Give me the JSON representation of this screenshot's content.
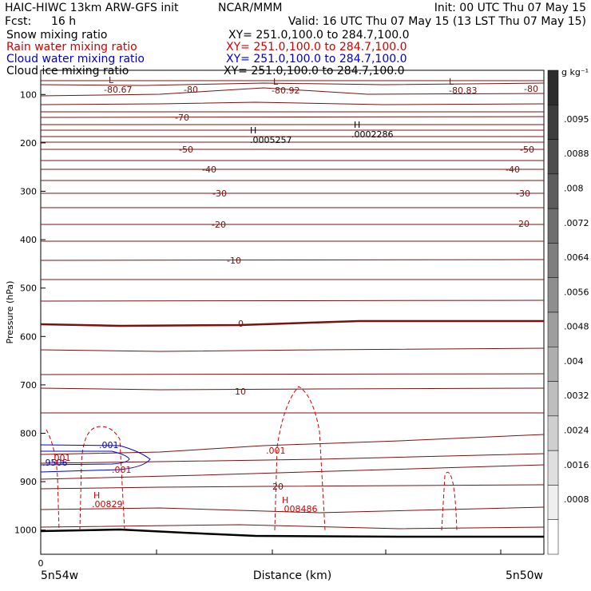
{
  "header": {
    "model": "HAIC-HIWC 13km ARW-GFS init",
    "org": "NCAR/MMM",
    "init": "Init: 00 UTC Thu 07 May 15",
    "fcst_label": "Fcst:",
    "fcst_value": "16 h",
    "valid": "Valid: 16 UTC Thu 07 May 15 (13 LST Thu 07 May 15)"
  },
  "fields": [
    {
      "name": "Snow mixing ratio",
      "xy": "XY= 251.0,100.0 to 284.7,100.0",
      "color": "#000000"
    },
    {
      "name": "Rain water mixing ratio",
      "xy": "XY= 251.0,100.0 to 284.7,100.0",
      "color": "#d40000"
    },
    {
      "name": "Cloud water mixing ratio",
      "xy": "XY= 251.0,100.0 to 284.7,100.0",
      "color": "#0000cc"
    },
    {
      "name": "Cloud ice mixing ratio",
      "xy": "XY= 251.0,100.0 to 284.7,100.0",
      "color": "#000000"
    }
  ],
  "chart_data": {
    "type": "contour-cross-section",
    "ylabel": "Pressure (hPa)",
    "xlabel": "Distance (km)",
    "y_ticks": [
      100,
      200,
      300,
      400,
      500,
      600,
      700,
      800,
      900,
      1000
    ],
    "y_range": [
      50,
      1050
    ],
    "x_range": [
      0,
      4.4
    ],
    "x_tick_label": "0",
    "x_left_label": "5n54w",
    "x_right_label": "5n50w",
    "colorbar": {
      "unit": "g kg⁻¹",
      "labels": [
        ".0095",
        ".0088",
        ".008",
        ".0072",
        ".0064",
        ".0056",
        ".0048",
        ".004",
        ".0032",
        ".0024",
        ".0016",
        ".0008"
      ]
    },
    "temperature_labels": [
      {
        "text": "-80.67",
        "color": "#7a1010"
      },
      {
        "text": "-80",
        "color": "#7a1010"
      },
      {
        "text": "-80.92",
        "color": "#7a1010"
      },
      {
        "text": "-80.83",
        "color": "#7a1010"
      },
      {
        "text": "-80",
        "color": "#7a1010"
      },
      {
        "text": "-70",
        "color": "#7a1010"
      },
      {
        "text": "-50",
        "color": "#7a1010"
      },
      {
        "text": "-50",
        "color": "#7a1010"
      },
      {
        "text": "-40",
        "color": "#7a1010"
      },
      {
        "text": "-40",
        "color": "#7a1010"
      },
      {
        "text": "-30",
        "color": "#7a1010"
      },
      {
        "text": "-30",
        "color": "#7a1010"
      },
      {
        "text": "-20",
        "color": "#7a1010"
      },
      {
        "text": "-20",
        "color": "#7a1010"
      },
      {
        "text": "-10",
        "color": "#7a1010"
      },
      {
        "text": "0",
        "color": "#7a1010"
      },
      {
        "text": "10",
        "color": "#7a1010"
      },
      {
        "text": "20",
        "color": "#7a1010"
      }
    ],
    "extrema_labels": [
      {
        "kind": "L",
        "color": "#7a1010"
      },
      {
        "kind": "L",
        "color": "#7a1010"
      },
      {
        "kind": "L",
        "color": "#7a1010"
      },
      {
        "kind": "H",
        "value": ".0005257",
        "color": "#000000"
      },
      {
        "kind": "H",
        "value": ".0002286",
        "color": "#000000"
      },
      {
        "kind": "H",
        "value": ".00829",
        "color": "#d40000"
      },
      {
        "kind": "H",
        "value": ".008486",
        "color": "#d40000"
      }
    ],
    "rain_labels": [
      ".001",
      ".001",
      ".001"
    ],
    "cloud_labels": [
      ".001",
      ".9506"
    ]
  }
}
